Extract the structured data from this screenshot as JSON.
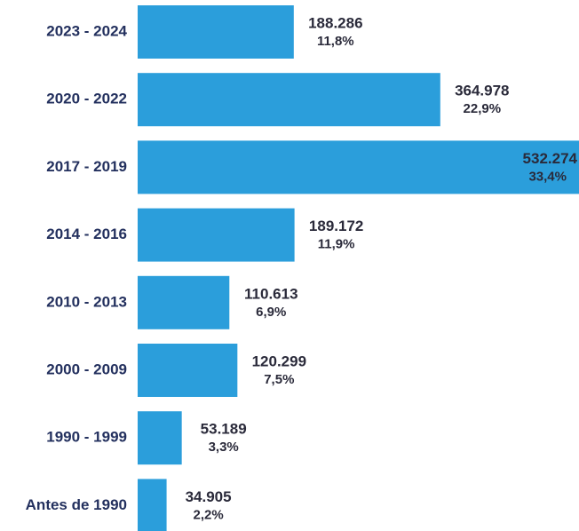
{
  "chart_data": {
    "type": "bar",
    "orientation": "horizontal",
    "color": "#2b9edb",
    "categories": [
      "2023 - 2024",
      "2020 - 2022",
      "2017 - 2019",
      "2014 - 2016",
      "2010 - 2013",
      "2000 - 2009",
      "1990 - 1999",
      "Antes de 1990"
    ],
    "values": [
      188286,
      364978,
      532274,
      189172,
      110613,
      120299,
      53189,
      34905
    ],
    "value_labels": [
      "188.286",
      "364.978",
      "532.274",
      "189.172",
      "110.613",
      "120.299",
      "53.189",
      "34.905"
    ],
    "shares": [
      11.8,
      22.9,
      33.4,
      11.9,
      6.9,
      7.5,
      3.3,
      2.2
    ],
    "share_labels": [
      "11,8%",
      "22,9%",
      "33,4%",
      "11,9%",
      "6,9%",
      "7,5%",
      "3,3%",
      "2,2%"
    ]
  }
}
